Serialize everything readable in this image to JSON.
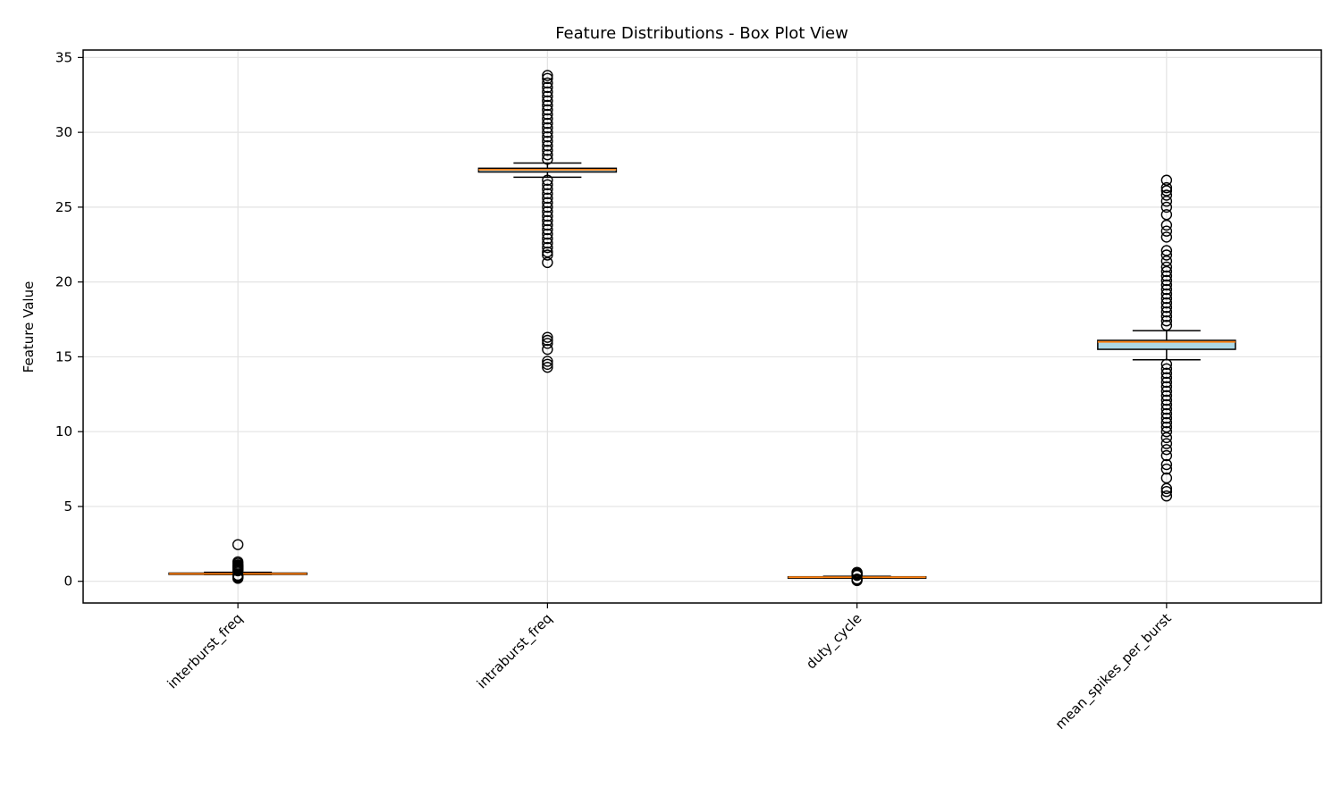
{
  "chart_data": {
    "type": "box",
    "title": "Feature Distributions - Box Plot View",
    "xlabel": "",
    "ylabel": "Feature Value",
    "ylim": [
      -1.45,
      35.5
    ],
    "yticks": [
      0,
      5,
      10,
      15,
      20,
      25,
      30,
      35
    ],
    "grid": true,
    "categories": [
      "interburst_freq",
      "intraburst_freq",
      "duty_cycle",
      "mean_spikes_per_burst"
    ],
    "box_color": "#add8e6",
    "median_color": "#ff7f0e",
    "boxes": [
      {
        "name": "interburst_freq",
        "whisker_low": 0.45,
        "q1": 0.46,
        "median": 0.5,
        "q3": 0.55,
        "whisker_high": 0.6,
        "outliers": [
          0.2,
          0.25,
          0.3,
          0.35,
          0.4,
          0.7,
          0.75,
          0.8,
          0.85,
          0.9,
          0.95,
          1.0,
          1.05,
          1.1,
          1.2,
          1.3,
          2.45
        ]
      },
      {
        "name": "intraburst_freq",
        "whisker_low": 27.0,
        "q1": 27.35,
        "median": 27.5,
        "q3": 27.6,
        "whisker_high": 27.95,
        "outliers": [
          14.3,
          14.5,
          14.7,
          15.5,
          15.9,
          16.1,
          16.3,
          21.3,
          21.8,
          22.0,
          22.3,
          22.6,
          22.9,
          23.2,
          23.5,
          23.8,
          24.1,
          24.4,
          24.7,
          25.0,
          25.3,
          25.6,
          25.9,
          26.2,
          26.5,
          26.8,
          28.2,
          28.5,
          28.8,
          29.1,
          29.4,
          29.7,
          30.0,
          30.3,
          30.6,
          30.9,
          31.2,
          31.5,
          31.8,
          32.1,
          32.4,
          32.7,
          33.0,
          33.3,
          33.6,
          33.8
        ]
      },
      {
        "name": "duty_cycle",
        "whisker_low": 0.22,
        "q1": 0.24,
        "median": 0.27,
        "q3": 0.3,
        "whisker_high": 0.33,
        "outliers": [
          0.05,
          0.1,
          0.15,
          0.4,
          0.45,
          0.5,
          0.55,
          0.6
        ]
      },
      {
        "name": "mean_spikes_per_burst",
        "whisker_low": 14.8,
        "q1": 15.5,
        "median": 16.0,
        "q3": 16.1,
        "whisker_high": 16.75,
        "outliers": [
          5.7,
          6.0,
          6.2,
          6.9,
          7.5,
          7.8,
          8.4,
          8.8,
          9.2,
          9.6,
          10.0,
          10.3,
          10.6,
          10.9,
          11.2,
          11.5,
          11.8,
          12.1,
          12.4,
          12.7,
          13.0,
          13.3,
          13.6,
          13.9,
          14.2,
          14.5,
          17.1,
          17.4,
          17.7,
          18.0,
          18.3,
          18.6,
          18.9,
          19.2,
          19.5,
          19.8,
          20.1,
          20.4,
          20.7,
          21.0,
          21.4,
          21.8,
          22.1,
          23.0,
          23.4,
          23.8,
          24.5,
          25.0,
          25.4,
          25.8,
          26.1,
          26.3,
          26.8
        ]
      }
    ]
  }
}
